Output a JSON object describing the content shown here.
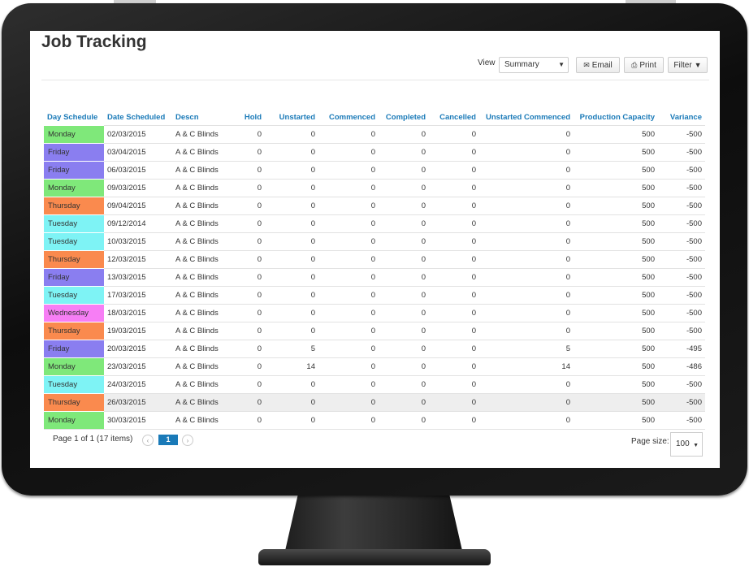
{
  "page": {
    "title": "Job Tracking"
  },
  "toolbar": {
    "view_label": "View",
    "view_value": "Summary",
    "email_label": "Email",
    "print_label": "Print",
    "filter_label": "Filter"
  },
  "table": {
    "columns": [
      "Day Schedule",
      "Date Scheduled",
      "Descn",
      "Hold",
      "Unstarted",
      "Commenced",
      "Completed",
      "Cancelled",
      "Unstarted Commenced",
      "Production Capacity",
      "Variance"
    ],
    "rows": [
      {
        "day": "Monday",
        "color": "#7fe87a",
        "date": "02/03/2015",
        "descn": "A & C Blinds",
        "hold": "0",
        "unstarted": "0",
        "commenced": "0",
        "completed": "0",
        "cancelled": "0",
        "uc": "0",
        "capacity": "500",
        "variance": "-500"
      },
      {
        "day": "Friday",
        "color": "#8a7ef0",
        "date": "03/04/2015",
        "descn": "A & C Blinds",
        "hold": "0",
        "unstarted": "0",
        "commenced": "0",
        "completed": "0",
        "cancelled": "0",
        "uc": "0",
        "capacity": "500",
        "variance": "-500"
      },
      {
        "day": "Friday",
        "color": "#8a7ef0",
        "date": "06/03/2015",
        "descn": "A & C Blinds",
        "hold": "0",
        "unstarted": "0",
        "commenced": "0",
        "completed": "0",
        "cancelled": "0",
        "uc": "0",
        "capacity": "500",
        "variance": "-500"
      },
      {
        "day": "Monday",
        "color": "#7fe87a",
        "date": "09/03/2015",
        "descn": "A & C Blinds",
        "hold": "0",
        "unstarted": "0",
        "commenced": "0",
        "completed": "0",
        "cancelled": "0",
        "uc": "0",
        "capacity": "500",
        "variance": "-500"
      },
      {
        "day": "Thursday",
        "color": "#fa8a4e",
        "date": "09/04/2015",
        "descn": "A & C Blinds",
        "hold": "0",
        "unstarted": "0",
        "commenced": "0",
        "completed": "0",
        "cancelled": "0",
        "uc": "0",
        "capacity": "500",
        "variance": "-500"
      },
      {
        "day": "Tuesday",
        "color": "#7ef3f5",
        "date": "09/12/2014",
        "descn": "A & C Blinds",
        "hold": "0",
        "unstarted": "0",
        "commenced": "0",
        "completed": "0",
        "cancelled": "0",
        "uc": "0",
        "capacity": "500",
        "variance": "-500"
      },
      {
        "day": "Tuesday",
        "color": "#7ef3f5",
        "date": "10/03/2015",
        "descn": "A & C Blinds",
        "hold": "0",
        "unstarted": "0",
        "commenced": "0",
        "completed": "0",
        "cancelled": "0",
        "uc": "0",
        "capacity": "500",
        "variance": "-500"
      },
      {
        "day": "Thursday",
        "color": "#fa8a4e",
        "date": "12/03/2015",
        "descn": "A & C Blinds",
        "hold": "0",
        "unstarted": "0",
        "commenced": "0",
        "completed": "0",
        "cancelled": "0",
        "uc": "0",
        "capacity": "500",
        "variance": "-500"
      },
      {
        "day": "Friday",
        "color": "#8a7ef0",
        "date": "13/03/2015",
        "descn": "A & C Blinds",
        "hold": "0",
        "unstarted": "0",
        "commenced": "0",
        "completed": "0",
        "cancelled": "0",
        "uc": "0",
        "capacity": "500",
        "variance": "-500"
      },
      {
        "day": "Tuesday",
        "color": "#7ef3f5",
        "date": "17/03/2015",
        "descn": "A & C Blinds",
        "hold": "0",
        "unstarted": "0",
        "commenced": "0",
        "completed": "0",
        "cancelled": "0",
        "uc": "0",
        "capacity": "500",
        "variance": "-500"
      },
      {
        "day": "Wednesday",
        "color": "#f77ef5",
        "date": "18/03/2015",
        "descn": "A & C Blinds",
        "hold": "0",
        "unstarted": "0",
        "commenced": "0",
        "completed": "0",
        "cancelled": "0",
        "uc": "0",
        "capacity": "500",
        "variance": "-500"
      },
      {
        "day": "Thursday",
        "color": "#fa8a4e",
        "date": "19/03/2015",
        "descn": "A & C Blinds",
        "hold": "0",
        "unstarted": "0",
        "commenced": "0",
        "completed": "0",
        "cancelled": "0",
        "uc": "0",
        "capacity": "500",
        "variance": "-500"
      },
      {
        "day": "Friday",
        "color": "#8a7ef0",
        "date": "20/03/2015",
        "descn": "A & C Blinds",
        "hold": "0",
        "unstarted": "5",
        "commenced": "0",
        "completed": "0",
        "cancelled": "0",
        "uc": "5",
        "capacity": "500",
        "variance": "-495"
      },
      {
        "day": "Monday",
        "color": "#7fe87a",
        "date": "23/03/2015",
        "descn": "A & C Blinds",
        "hold": "0",
        "unstarted": "14",
        "commenced": "0",
        "completed": "0",
        "cancelled": "0",
        "uc": "14",
        "capacity": "500",
        "variance": "-486"
      },
      {
        "day": "Tuesday",
        "color": "#7ef3f5",
        "date": "24/03/2015",
        "descn": "A & C Blinds",
        "hold": "0",
        "unstarted": "0",
        "commenced": "0",
        "completed": "0",
        "cancelled": "0",
        "uc": "0",
        "capacity": "500",
        "variance": "-500"
      },
      {
        "day": "Thursday",
        "color": "#fa8a4e",
        "date": "26/03/2015",
        "descn": "A & C Blinds",
        "hold": "0",
        "unstarted": "0",
        "commenced": "0",
        "completed": "0",
        "cancelled": "0",
        "uc": "0",
        "capacity": "500",
        "variance": "-500",
        "highlight": true
      },
      {
        "day": "Monday",
        "color": "#7fe87a",
        "date": "30/03/2015",
        "descn": "A & C Blinds",
        "hold": "0",
        "unstarted": "0",
        "commenced": "0",
        "completed": "0",
        "cancelled": "0",
        "uc": "0",
        "capacity": "500",
        "variance": "-500"
      }
    ]
  },
  "pager": {
    "summary": "Page 1 of 1 (17 items)",
    "current_page": "1",
    "page_size_label": "Page size:",
    "page_size_value": "100"
  },
  "icons": {
    "email": "envelope-icon",
    "print": "printer-icon",
    "filter": "funnel-icon"
  }
}
